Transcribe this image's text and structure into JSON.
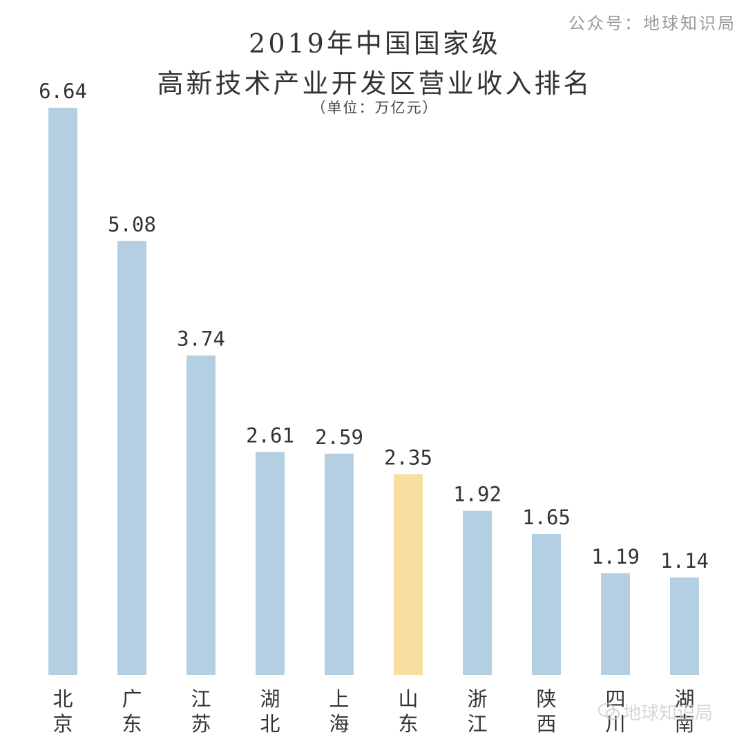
{
  "source": "公众号：地球知识局",
  "watermark": "地球知识局",
  "chart_data": {
    "type": "bar",
    "title_line1": "2019年中国国家级",
    "title_line2": "高新技术产业开发区营业收入排名",
    "unit": "（单位：万亿元）",
    "categories": [
      "北京",
      "广东",
      "江苏",
      "湖北",
      "上海",
      "山东",
      "浙江",
      "陕西",
      "四川",
      "湖南"
    ],
    "values": [
      6.64,
      5.08,
      3.74,
      2.61,
      2.59,
      2.35,
      1.92,
      1.65,
      1.19,
      1.14
    ],
    "value_labels": [
      "6.64",
      "5.08",
      "3.74",
      "2.61",
      "2.59",
      "2.35",
      "1.92",
      "1.65",
      "1.19",
      "1.14"
    ],
    "ylim": [
      0,
      6.64
    ],
    "grid": false,
    "colors": {
      "default": "#b5cfe2",
      "highlight": "#f6df9f"
    },
    "highlight_index": 5
  }
}
